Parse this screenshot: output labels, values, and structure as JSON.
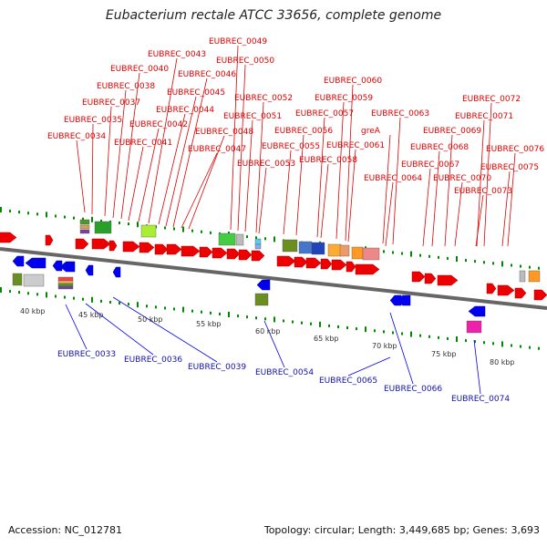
{
  "title": "Eubacterium rectale ATCC 33656, complete genome",
  "footer": {
    "accession": "Accession: NC_012781",
    "topology": "Topology: circular; Length: 3,449,685 bp; Genes: 3,693"
  },
  "scale_ticks": [
    "40 kbp",
    "45 kbp",
    "50 kbp",
    "55 kbp",
    "60 kbp",
    "65 kbp",
    "70 kbp",
    "75 kbp",
    "80 kbp"
  ],
  "top_labels": [
    "EUBREC_0034",
    "EUBREC_0035",
    "EUBREC_0037",
    "EUBREC_0038",
    "EUBREC_0040",
    "EUBREC_0041",
    "EUBREC_0042",
    "EUBREC_0043",
    "EUBREC_0044",
    "EUBREC_0045",
    "EUBREC_0046",
    "EUBREC_0047",
    "EUBREC_0048",
    "EUBREC_0049",
    "EUBREC_0050",
    "EUBREC_0051",
    "EUBREC_0052",
    "EUBREC_0053",
    "EUBREC_0055",
    "EUBREC_0056",
    "EUBREC_0057",
    "EUBREC_0058",
    "EUBREC_0059",
    "EUBREC_0060",
    "EUBREC_0061",
    "greA",
    "EUBREC_0063",
    "EUBREC_0064",
    "EUBREC_0067",
    "EUBREC_0068",
    "EUBREC_0069",
    "EUBREC_0070",
    "EUBREC_0071",
    "EUBREC_0072",
    "EUBREC_0073",
    "EUBREC_0075",
    "EUBREC_0076"
  ],
  "bottom_labels": [
    "EUBREC_0033",
    "EUBREC_0036",
    "EUBREC_0039",
    "EUBREC_0054",
    "EUBREC_0065",
    "EUBREC_0066",
    "EUBREC_0074"
  ],
  "colors": {
    "forward_gene": "#ee0000",
    "reverse_gene": "#0000ee",
    "backbone": "#666666",
    "tick": "#008800",
    "top_label": "#dd0000",
    "bottom_label": "#1111aa"
  }
}
